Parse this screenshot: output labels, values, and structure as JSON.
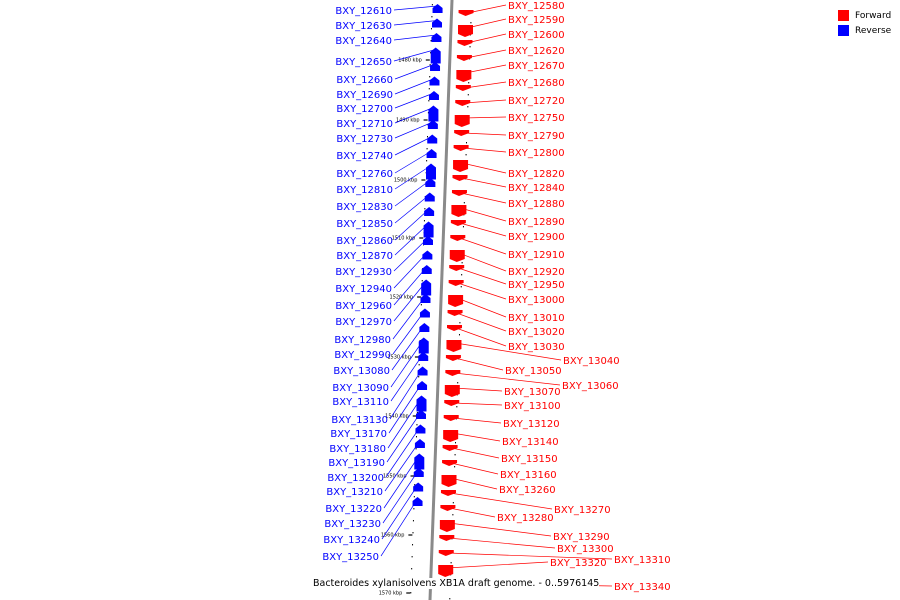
{
  "legend": {
    "forward_label": "Forward",
    "reverse_label": "Reverse",
    "forward_color": "#ff0000",
    "reverse_color": "#0000ff"
  },
  "caption": "Bacteroides xylanisolvens XB1A draft genome. - 0..5976145",
  "ticks": [
    "1480 kbp",
    "1490 kbp",
    "1500 kbp",
    "1510 kbp",
    "1520 kbp",
    "1530 kbp",
    "1540 kbp",
    "1550 kbp",
    "1560 kbp",
    "1570 kbp"
  ],
  "reverse_genes": [
    "BXY_12610",
    "BXY_12630",
    "BXY_12640",
    "BXY_12650",
    "BXY_12660",
    "BXY_12690",
    "BXY_12700",
    "BXY_12710",
    "BXY_12730",
    "BXY_12740",
    "BXY_12760",
    "BXY_12810",
    "BXY_12830",
    "BXY_12850",
    "BXY_12860",
    "BXY_12870",
    "BXY_12930",
    "BXY_12940",
    "BXY_12960",
    "BXY_12970",
    "BXY_12980",
    "BXY_12990",
    "BXY_13080",
    "BXY_13090",
    "BXY_13110",
    "BXY_13130",
    "BXY_13170",
    "BXY_13180",
    "BXY_13190",
    "BXY_13200",
    "BXY_13210",
    "BXY_13220",
    "BXY_13230",
    "BXY_13240",
    "BXY_13250"
  ],
  "forward_genes": [
    "BXY_12580",
    "BXY_12590",
    "BXY_12600",
    "BXY_12620",
    "BXY_12670",
    "BXY_12680",
    "BXY_12720",
    "BXY_12750",
    "BXY_12790",
    "BXY_12800",
    "BXY_12820",
    "BXY_12840",
    "BXY_12880",
    "BXY_12890",
    "BXY_12900",
    "BXY_12910",
    "BXY_12920",
    "BXY_12950",
    "BXY_13000",
    "BXY_13010",
    "BXY_13020",
    "BXY_13030",
    "BXY_13040",
    "BXY_13050",
    "BXY_13060",
    "BXY_13070",
    "BXY_13100",
    "BXY_13120",
    "BXY_13140",
    "BXY_13150",
    "BXY_13160",
    "BXY_13260",
    "BXY_13270",
    "BXY_13280",
    "BXY_13290",
    "BXY_13300",
    "BXY_13310",
    "BXY_13320",
    "BXY_13340"
  ]
}
